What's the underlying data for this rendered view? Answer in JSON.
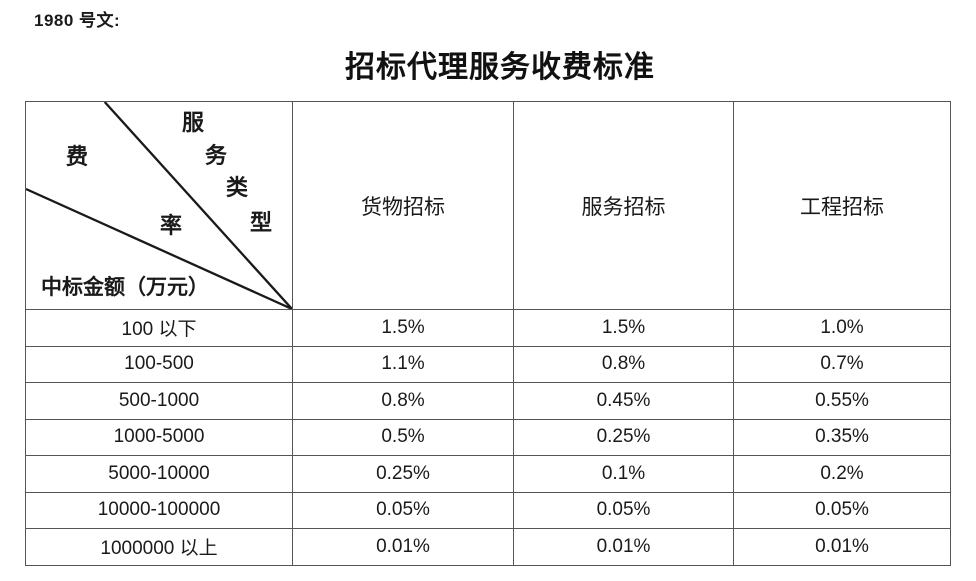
{
  "document": {
    "ref_label": "1980 号文:",
    "title": "招标代理服务收费标准"
  },
  "table": {
    "corner": {
      "type_chars": [
        "服",
        "务",
        "类",
        "型"
      ],
      "rate_chars": [
        "费",
        "率"
      ],
      "amount_label": "中标金额（万元）"
    },
    "column_headers": [
      "货物招标",
      "服务招标",
      "工程招标"
    ],
    "rows": [
      {
        "amount": "100 以下",
        "values": [
          "1.5%",
          "1.5%",
          "1.0%"
        ]
      },
      {
        "amount": "100-500",
        "values": [
          "1.1%",
          "0.8%",
          "0.7%"
        ]
      },
      {
        "amount": "500-1000",
        "values": [
          "0.8%",
          "0.45%",
          "0.55%"
        ]
      },
      {
        "amount": "1000-5000",
        "values": [
          "0.5%",
          "0.25%",
          "0.35%"
        ]
      },
      {
        "amount": "5000-10000",
        "values": [
          "0.25%",
          "0.1%",
          "0.2%"
        ]
      },
      {
        "amount": "10000-100000",
        "values": [
          "0.05%",
          "0.05%",
          "0.05%"
        ]
      },
      {
        "amount": "1000000 以上",
        "values": [
          "0.01%",
          "0.01%",
          "0.01%"
        ]
      }
    ]
  },
  "colors": {
    "border": "#555555",
    "diagonal": "#1a1a1a",
    "text": "#1a1a1a"
  }
}
